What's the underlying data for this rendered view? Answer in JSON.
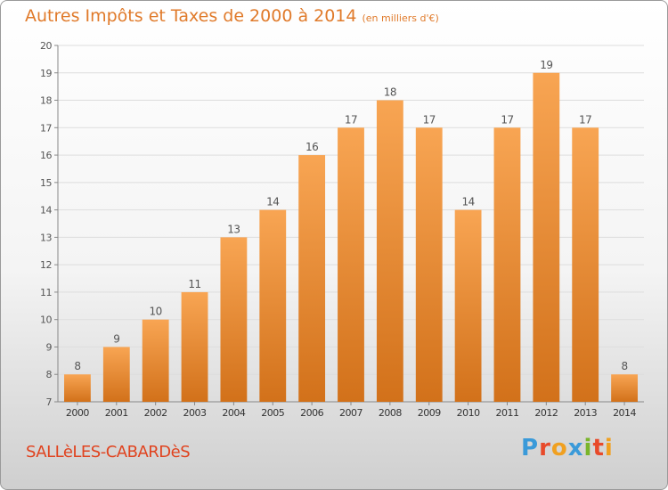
{
  "chart_data": {
    "type": "bar",
    "title": "Autres Impôts et Taxes de 2000 à 2014",
    "subtitle": "(en milliers d'€)",
    "categories": [
      "2000",
      "2001",
      "2002",
      "2003",
      "2004",
      "2005",
      "2006",
      "2007",
      "2008",
      "2009",
      "2010",
      "2011",
      "2012",
      "2013",
      "2014"
    ],
    "values": [
      8,
      9,
      10,
      11,
      13,
      14,
      16,
      17,
      18,
      17,
      14,
      17,
      19,
      17,
      8
    ],
    "ylim": [
      7,
      20
    ],
    "yticks": [
      7,
      8,
      9,
      10,
      11,
      12,
      13,
      14,
      15,
      16,
      17,
      18,
      19,
      20
    ],
    "grid": true,
    "colors": {
      "bar_top": "#f8a553",
      "bar_bottom": "#d2711a",
      "text": "#555555",
      "grid": "#dddddd"
    }
  },
  "footer": {
    "commune": "SALLèLES-CABARDèS",
    "logo": [
      "P",
      "r",
      "o",
      "x",
      "i",
      "t",
      "i"
    ],
    "logo_colors": [
      "#3a9ad9",
      "#e84a2a",
      "#f0a020",
      "#3a9ad9",
      "#7ab52a",
      "#e84a2a",
      "#f0a020"
    ]
  }
}
